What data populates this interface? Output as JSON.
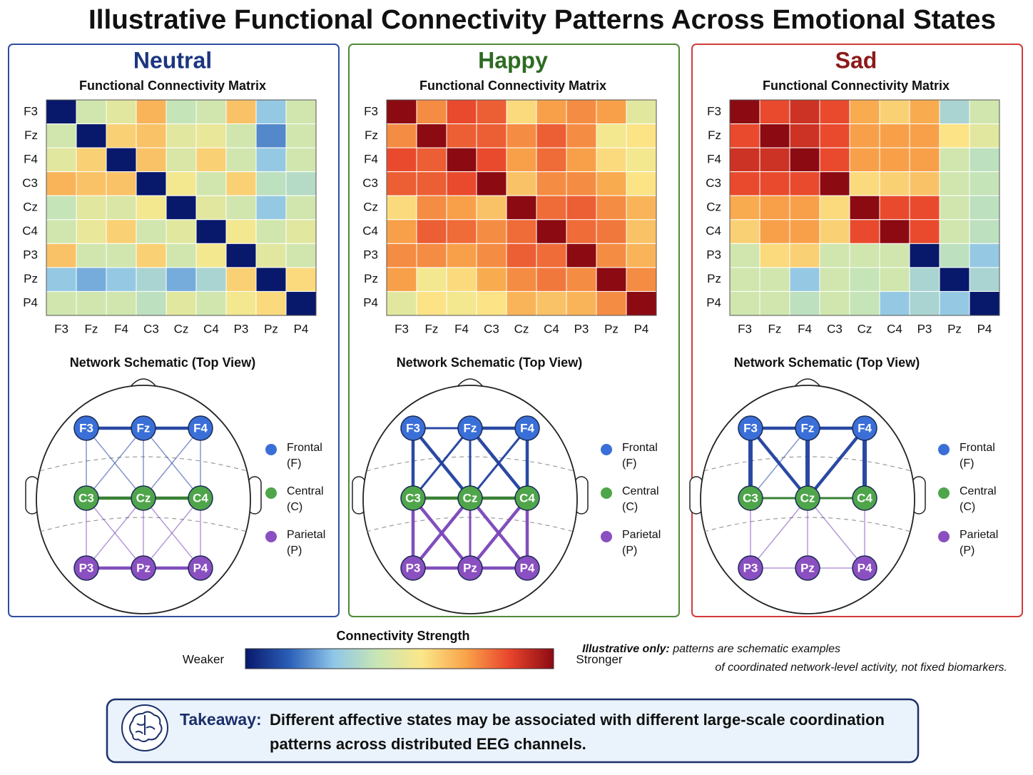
{
  "title": "Illustrative Functional Connectivity Patterns Across Emotional States",
  "groups": [
    {
      "name": "Frontal",
      "abbrev": "(F)",
      "color": "#3a6fd8",
      "edge": "#1f3f9e"
    },
    {
      "name": "Central",
      "abbrev": "(C)",
      "color": "#4fa54a",
      "edge": "#2f7a2b"
    },
    {
      "name": "Parietal",
      "abbrev": "(P)",
      "color": "#8a4fc0",
      "edge": "#7a45b8"
    }
  ],
  "nodes": [
    {
      "label": "F3",
      "group": 0
    },
    {
      "label": "Fz",
      "group": 0
    },
    {
      "label": "F4",
      "group": 0
    },
    {
      "label": "C3",
      "group": 1
    },
    {
      "label": "Cz",
      "group": 1
    },
    {
      "label": "C4",
      "group": 1
    },
    {
      "label": "P3",
      "group": 2
    },
    {
      "label": "Pz",
      "group": 2
    },
    {
      "label": "P4",
      "group": 2
    }
  ],
  "colorbar": {
    "title": "Connectivity Strength",
    "low": "Weaker",
    "high": "Stronger",
    "zlim": [
      0,
      1
    ],
    "colors": [
      "#08186b",
      "#2b5fb8",
      "#8fc6e8",
      "#c8e6b4",
      "#fbe78a",
      "#f9a44a",
      "#e8452c",
      "#8c0a12"
    ]
  },
  "chart_data": [
    {
      "type": "heatmap",
      "panel_title": "Neutral",
      "title_color": "#1c3580",
      "border": "#2d4fa0",
      "subtitle": "Functional Connectivity Matrix",
      "categories": [
        "F3",
        "Fz",
        "F4",
        "C3",
        "Cz",
        "C4",
        "P3",
        "Pz",
        "P4"
      ],
      "values": [
        [
          0,
          0.45,
          0.5,
          0.68,
          0.42,
          0.45,
          0.65,
          0.3,
          0.45
        ],
        [
          0.45,
          0,
          0.62,
          0.65,
          0.5,
          0.52,
          0.45,
          0.2,
          0.45
        ],
        [
          0.5,
          0.62,
          0,
          0.65,
          0.48,
          0.62,
          0.45,
          0.3,
          0.45
        ],
        [
          0.68,
          0.65,
          0.65,
          0,
          0.55,
          0.45,
          0.62,
          0.4,
          0.38
        ],
        [
          0.42,
          0.5,
          0.48,
          0.55,
          0,
          0.5,
          0.45,
          0.3,
          0.45
        ],
        [
          0.45,
          0.52,
          0.62,
          0.45,
          0.5,
          0,
          0.55,
          0.45,
          0.5
        ],
        [
          0.65,
          0.45,
          0.45,
          0.62,
          0.45,
          0.55,
          0,
          0.5,
          0.45
        ],
        [
          0.3,
          0.25,
          0.3,
          0.35,
          0.25,
          0.35,
          0.62,
          0,
          0.6
        ],
        [
          0.45,
          0.45,
          0.45,
          0.4,
          0.5,
          0.45,
          0.55,
          0.6,
          0
        ]
      ],
      "schematic": {
        "title": "Network Schematic (Top View)",
        "edges": [
          [
            0,
            1,
            3
          ],
          [
            1,
            2,
            3
          ],
          [
            3,
            4,
            3
          ],
          [
            4,
            5,
            3
          ],
          [
            6,
            7,
            3
          ],
          [
            7,
            8,
            3
          ],
          [
            0,
            3,
            1
          ],
          [
            0,
            4,
            1
          ],
          [
            1,
            3,
            1
          ],
          [
            1,
            5,
            1
          ],
          [
            2,
            4,
            1
          ],
          [
            2,
            5,
            1
          ],
          [
            1,
            4,
            1
          ],
          [
            3,
            7,
            1
          ],
          [
            3,
            6,
            1
          ],
          [
            4,
            6,
            1
          ],
          [
            4,
            8,
            1
          ],
          [
            4,
            7,
            1
          ],
          [
            5,
            7,
            1
          ],
          [
            5,
            8,
            1
          ]
        ]
      }
    },
    {
      "type": "heatmap",
      "panel_title": "Happy",
      "title_color": "#2e6b22",
      "border": "#4f8a3a",
      "subtitle": "Functional Connectivity Matrix",
      "categories": [
        "F3",
        "Fz",
        "F4",
        "C3",
        "Cz",
        "C4",
        "P3",
        "Pz",
        "P4"
      ],
      "values": [
        [
          1,
          0.75,
          0.85,
          0.82,
          0.6,
          0.72,
          0.75,
          0.72,
          0.5
        ],
        [
          0.75,
          1,
          0.82,
          0.82,
          0.75,
          0.82,
          0.75,
          0.55,
          0.58
        ],
        [
          0.85,
          0.82,
          1,
          0.85,
          0.72,
          0.8,
          0.72,
          0.6,
          0.55
        ],
        [
          0.82,
          0.82,
          0.85,
          1,
          0.65,
          0.75,
          0.75,
          0.7,
          0.58
        ],
        [
          0.6,
          0.75,
          0.72,
          0.65,
          1,
          0.8,
          0.82,
          0.75,
          0.68
        ],
        [
          0.72,
          0.82,
          0.8,
          0.75,
          0.8,
          1,
          0.8,
          0.78,
          0.65
        ],
        [
          0.75,
          0.75,
          0.72,
          0.75,
          0.82,
          0.8,
          1,
          0.75,
          0.68
        ],
        [
          0.72,
          0.55,
          0.6,
          0.7,
          0.75,
          0.78,
          0.75,
          1,
          0.75
        ],
        [
          0.5,
          0.58,
          0.55,
          0.58,
          0.68,
          0.65,
          0.68,
          0.75,
          1
        ]
      ],
      "schematic": {
        "title": "Network Schematic (Top View)",
        "edges": [
          [
            0,
            1,
            2
          ],
          [
            1,
            2,
            3
          ],
          [
            3,
            4,
            3
          ],
          [
            4,
            5,
            3
          ],
          [
            6,
            7,
            3
          ],
          [
            7,
            8,
            3
          ],
          [
            0,
            3,
            3
          ],
          [
            0,
            4,
            3
          ],
          [
            1,
            3,
            2
          ],
          [
            1,
            4,
            2
          ],
          [
            1,
            5,
            3
          ],
          [
            2,
            4,
            2
          ],
          [
            2,
            5,
            3
          ],
          [
            3,
            6,
            3
          ],
          [
            3,
            7,
            3
          ],
          [
            4,
            6,
            3
          ],
          [
            4,
            7,
            2
          ],
          [
            4,
            8,
            3
          ],
          [
            5,
            7,
            3
          ],
          [
            5,
            8,
            3
          ]
        ]
      }
    },
    {
      "type": "heatmap",
      "panel_title": "Sad",
      "title_color": "#8c1a1a",
      "border": "#d43a3a",
      "subtitle": "Functional Connectivity Matrix",
      "categories": [
        "F3",
        "Fz",
        "F4",
        "C3",
        "Cz",
        "C4",
        "P3",
        "Pz",
        "P4"
      ],
      "values": [
        [
          1,
          0.85,
          0.9,
          0.85,
          0.7,
          0.62,
          0.7,
          0.35,
          0.45
        ],
        [
          0.85,
          1,
          0.9,
          0.85,
          0.72,
          0.72,
          0.72,
          0.58,
          0.5
        ],
        [
          0.9,
          0.9,
          1,
          0.85,
          0.72,
          0.72,
          0.72,
          0.45,
          0.4
        ],
        [
          0.85,
          0.85,
          0.85,
          1,
          0.6,
          0.62,
          0.65,
          0.45,
          0.42
        ],
        [
          0.7,
          0.72,
          0.72,
          0.6,
          1,
          0.85,
          0.85,
          0.45,
          0.4
        ],
        [
          0.62,
          0.72,
          0.72,
          0.62,
          0.85,
          1,
          0.85,
          0.45,
          0.4
        ],
        [
          0.45,
          0.6,
          0.62,
          0.45,
          0.45,
          0.45,
          0,
          0.4,
          0.3
        ],
        [
          0.45,
          0.45,
          0.3,
          0.45,
          0.42,
          0.45,
          0.35,
          0,
          0.35
        ],
        [
          0.45,
          0.45,
          0.4,
          0.45,
          0.42,
          0.3,
          0.35,
          0.3,
          0
        ]
      ],
      "schematic": {
        "title": "Network Schematic (Top View)",
        "edges": [
          [
            0,
            1,
            3
          ],
          [
            1,
            2,
            3
          ],
          [
            3,
            4,
            2
          ],
          [
            4,
            5,
            2
          ],
          [
            6,
            7,
            1
          ],
          [
            7,
            8,
            1
          ],
          [
            0,
            3,
            4
          ],
          [
            1,
            4,
            4
          ],
          [
            2,
            5,
            4
          ],
          [
            0,
            4,
            3
          ],
          [
            2,
            4,
            3
          ],
          [
            1,
            3,
            1
          ],
          [
            3,
            6,
            1
          ],
          [
            4,
            6,
            1
          ],
          [
            4,
            8,
            1
          ],
          [
            5,
            8,
            1
          ],
          [
            4,
            7,
            1
          ]
        ]
      }
    }
  ],
  "note": {
    "lead": "Illustrative only:",
    "lines": [
      "patterns are schematic examples",
      "of coordinated network-level activity, not fixed biomarkers."
    ]
  },
  "takeaway": {
    "label": "Takeaway:",
    "lines": [
      "Different affective states may be associated with different  large-scale coordination",
      "patterns across distributed EEG channels."
    ]
  }
}
